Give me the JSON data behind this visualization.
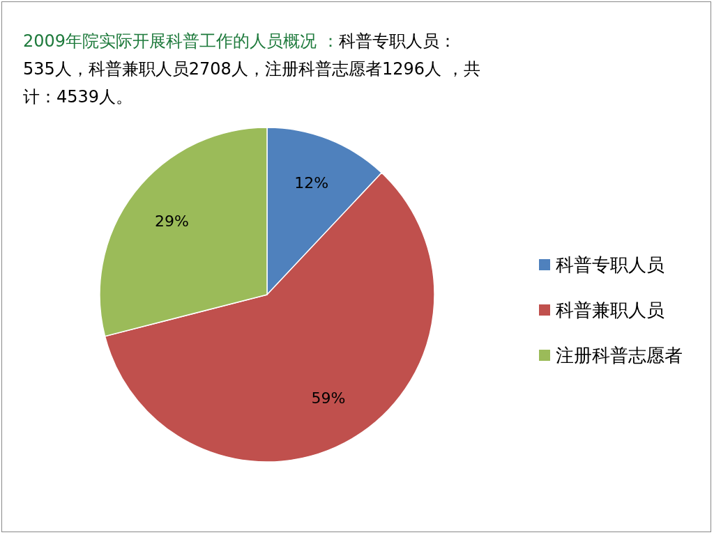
{
  "chart_data": {
    "type": "pie",
    "title": "2009年院实际开展科普工作的人员概况 ：",
    "subtitle": "科普专职人员：535人，科普兼职人员2708人，注册科普志愿者1296人 ，共计：4539人。",
    "categories": [
      "科普专职人员",
      "科普兼职人员",
      "注册科普志愿者"
    ],
    "values": [
      12,
      59,
      29
    ],
    "colors": [
      "#4f81bd",
      "#c0504d",
      "#9bbb59"
    ],
    "value_labels": [
      "12%",
      "59%",
      "29%"
    ],
    "legend": "right"
  }
}
